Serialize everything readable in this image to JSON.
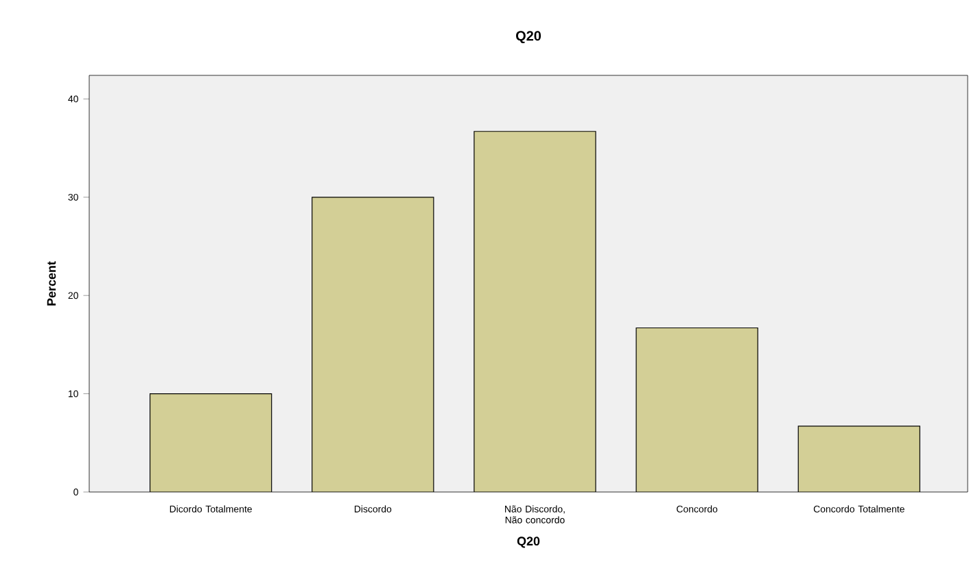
{
  "chart_data": {
    "type": "bar",
    "title": "Q20",
    "xlabel": "Q20",
    "ylabel": "Percent",
    "categories": [
      "Dicordo Totalmente",
      "Discordo",
      "Não Discordo, Não concordo",
      "Concordo",
      "Concordo Totalmente"
    ],
    "values": [
      10,
      30,
      36.7,
      16.7,
      6.7
    ],
    "color": "#d3cf96",
    "ylim": [
      0,
      42.4
    ],
    "yticks": [
      0,
      10,
      20,
      30,
      40
    ],
    "grid": false
  }
}
